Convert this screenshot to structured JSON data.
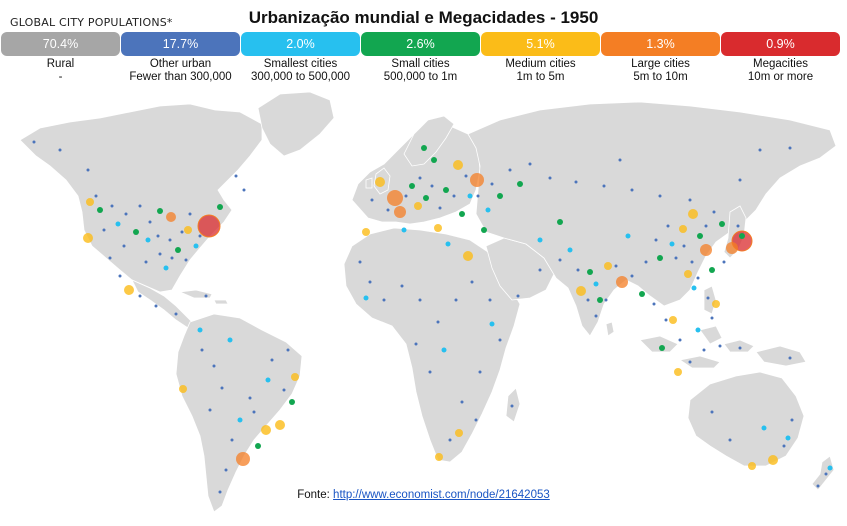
{
  "header": {
    "corner_label": "GLOBAL CITY POPULATIONS*",
    "title": "Urbanização mundial e Megacidades - 1950"
  },
  "legend": [
    {
      "pct": "70.4%",
      "name": "Rural",
      "range": "-",
      "color": "#a6a6a6"
    },
    {
      "pct": "17.7%",
      "name": "Other urban",
      "range": "Fewer than 300,000",
      "color": "#4c74bb"
    },
    {
      "pct": "2.0%",
      "name": "Smallest cities",
      "range": "300,000 to 500,000",
      "color": "#27c0ef"
    },
    {
      "pct": "2.6%",
      "name": "Small cities",
      "range": "500,000 to 1m",
      "color": "#12a650"
    },
    {
      "pct": "5.1%",
      "name": "Medium cities",
      "range": "1m to 5m",
      "color": "#fbbc18"
    },
    {
      "pct": "1.3%",
      "name": "Large cities",
      "range": "5m to 10m",
      "color": "#f47e24"
    },
    {
      "pct": "0.9%",
      "name": "Megacities",
      "range": "10m or more",
      "color": "#d92b2e"
    }
  ],
  "map": {
    "land_color": "#d9d9d9",
    "cities": [
      {
        "name": "New York",
        "category": "megacity"
      },
      {
        "name": "Tokyo",
        "category": "megacity"
      },
      {
        "name": "London",
        "category": "large"
      },
      {
        "name": "Paris",
        "category": "large"
      },
      {
        "name": "Moscow",
        "category": "large"
      },
      {
        "name": "Osaka",
        "category": "large"
      },
      {
        "name": "Buenos Aires",
        "category": "large"
      },
      {
        "name": "Chicago",
        "category": "large"
      },
      {
        "name": "Calcutta",
        "category": "large"
      },
      {
        "name": "Shanghai",
        "category": "large"
      },
      {
        "name": "Los Angeles",
        "category": "medium"
      },
      {
        "name": "Mexico City",
        "category": "medium"
      },
      {
        "name": "Rio de Janeiro",
        "category": "medium"
      },
      {
        "name": "Sao Paulo",
        "category": "medium"
      },
      {
        "name": "Bombay",
        "category": "medium"
      },
      {
        "name": "Cairo",
        "category": "medium"
      },
      {
        "name": "Beijing",
        "category": "medium"
      },
      {
        "name": "Sydney",
        "category": "medium"
      }
    ]
  },
  "source": {
    "prefix": "Fonte: ",
    "link_text": "http://www.economist.com/node/21642053"
  }
}
